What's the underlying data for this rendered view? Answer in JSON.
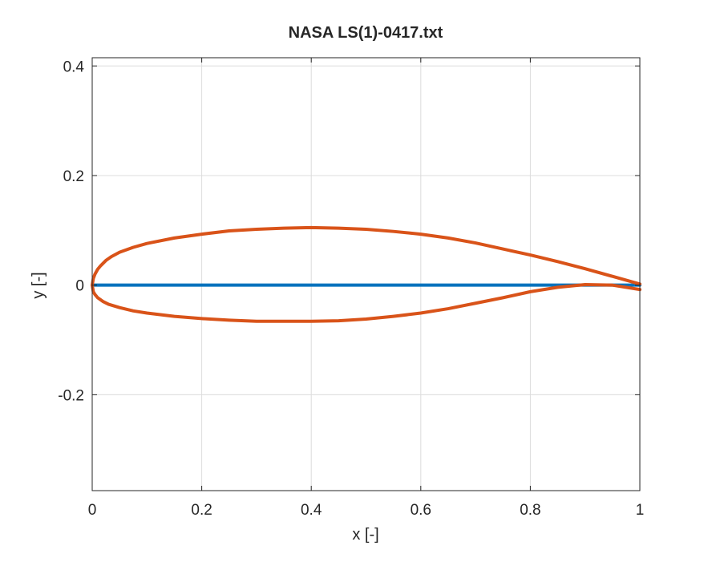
{
  "chart_data": {
    "type": "line",
    "title": "NASA LS(1)-0417.txt",
    "xlabel": "x [-]",
    "ylabel": "y [-]",
    "xlim": [
      0,
      1
    ],
    "ylim": [
      -0.375,
      0.415
    ],
    "xticks": [
      0,
      0.2,
      0.4,
      0.6,
      0.8,
      1
    ],
    "xtick_labels": [
      "0",
      "0.2",
      "0.4",
      "0.6",
      "0.8",
      "1"
    ],
    "yticks": [
      -0.2,
      0,
      0.2,
      0.4
    ],
    "ytick_labels": [
      "-0.2",
      "0",
      "0.2",
      "0.4"
    ],
    "grid": true,
    "legend": "none",
    "series": [
      {
        "color": "#0072BD",
        "x": [
          0,
          1
        ],
        "y": [
          0,
          0
        ]
      },
      {
        "color": "#D95319",
        "x": [
          1.0,
          0.95,
          0.9,
          0.85,
          0.8,
          0.75,
          0.7,
          0.65,
          0.6,
          0.55,
          0.5,
          0.45,
          0.4,
          0.35,
          0.3,
          0.25,
          0.2,
          0.15,
          0.1,
          0.075,
          0.05,
          0.035,
          0.025,
          0.015,
          0.01,
          0.005,
          0.002,
          0.0,
          0.002,
          0.005,
          0.01,
          0.02,
          0.03,
          0.05,
          0.075,
          0.1,
          0.15,
          0.2,
          0.25,
          0.3,
          0.35,
          0.4,
          0.45,
          0.5,
          0.55,
          0.6,
          0.65,
          0.7,
          0.75,
          0.8,
          0.85,
          0.9,
          0.95,
          1.0
        ],
        "y": [
          0.002,
          0.016,
          0.03,
          0.043,
          0.055,
          0.066,
          0.077,
          0.086,
          0.093,
          0.098,
          0.102,
          0.104,
          0.105,
          0.104,
          0.102,
          0.099,
          0.093,
          0.086,
          0.076,
          0.069,
          0.06,
          0.052,
          0.045,
          0.035,
          0.029,
          0.02,
          0.012,
          0.0,
          -0.012,
          -0.017,
          -0.023,
          -0.03,
          -0.035,
          -0.041,
          -0.047,
          -0.051,
          -0.057,
          -0.061,
          -0.064,
          -0.066,
          -0.066,
          -0.066,
          -0.065,
          -0.062,
          -0.057,
          -0.051,
          -0.043,
          -0.033,
          -0.023,
          -0.012,
          -0.004,
          0.001,
          0.0,
          -0.008
        ]
      }
    ]
  }
}
